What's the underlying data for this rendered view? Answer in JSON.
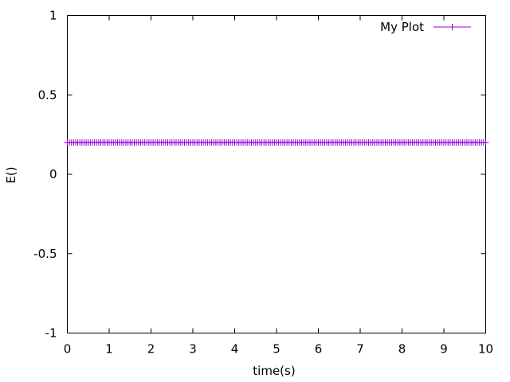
{
  "chart_data": {
    "type": "line",
    "title": "",
    "xlabel": "time(s)",
    "ylabel": "E()",
    "xlim": [
      0,
      10
    ],
    "ylim": [
      -1,
      1
    ],
    "xticks": [
      0,
      1,
      2,
      3,
      4,
      5,
      6,
      7,
      8,
      9,
      10
    ],
    "yticks": [
      -1,
      -0.5,
      0,
      0.5,
      1
    ],
    "xtick_labels": [
      "0",
      "1",
      "2",
      "3",
      "4",
      "5",
      "6",
      "7",
      "8",
      "9",
      "10"
    ],
    "ytick_labels": [
      "-1",
      "-0.5",
      "0",
      "0.5",
      "1"
    ],
    "grid": false,
    "legend": {
      "position": "top-right"
    },
    "series": [
      {
        "name": "My Plot",
        "color": "#9400d3",
        "marker": "plus",
        "x_start": 0,
        "x_end": 10,
        "x_step": 0.05,
        "y": 0.2
      }
    ]
  }
}
